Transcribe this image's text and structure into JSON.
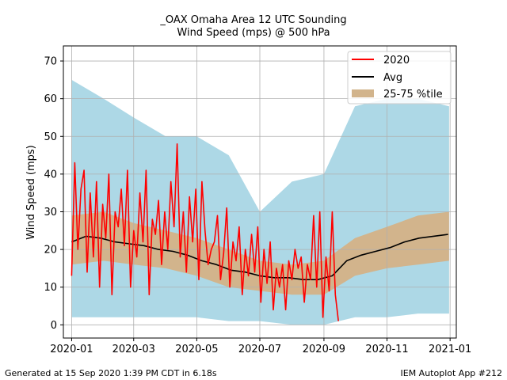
{
  "chart_data": {
    "type": "line",
    "title": "_OAX Omaha Area  12 UTC Sounding",
    "subtitle": "Wind Speed (mps)  @ 500 hPa",
    "ylabel": "Wind Speed (mps)",
    "xlabel": "",
    "ylim": [
      -3.5,
      74
    ],
    "xlim": [
      "2019-12-24",
      "2021-01-07"
    ],
    "yticks": [
      0,
      10,
      20,
      30,
      40,
      50,
      60,
      70
    ],
    "xticks": [
      "2020-01",
      "2020-03",
      "2020-05",
      "2020-07",
      "2020-09",
      "2020-11",
      "2021-01"
    ],
    "grid": true,
    "legend": {
      "placement": "top-right",
      "entries": [
        "2020",
        "Avg",
        "25-75 %tile"
      ]
    },
    "colors": {
      "y2020": "#ff0000",
      "avg": "#000000",
      "iqr": "#d2b48c",
      "range": "#add8e6"
    },
    "series": [
      {
        "name": "2020",
        "x": [
          "2020-01-01",
          "2020-01-04",
          "2020-01-07",
          "2020-01-10",
          "2020-01-13",
          "2020-01-16",
          "2020-01-19",
          "2020-01-22",
          "2020-01-25",
          "2020-01-28",
          "2020-01-31",
          "2020-02-03",
          "2020-02-06",
          "2020-02-09",
          "2020-02-12",
          "2020-02-15",
          "2020-02-18",
          "2020-02-21",
          "2020-02-24",
          "2020-02-27",
          "2020-03-01",
          "2020-03-04",
          "2020-03-07",
          "2020-03-10",
          "2020-03-13",
          "2020-03-16",
          "2020-03-19",
          "2020-03-22",
          "2020-03-25",
          "2020-03-28",
          "2020-03-31",
          "2020-04-03",
          "2020-04-06",
          "2020-04-09",
          "2020-04-12",
          "2020-04-15",
          "2020-04-18",
          "2020-04-21",
          "2020-04-24",
          "2020-04-27",
          "2020-04-30",
          "2020-05-03",
          "2020-05-06",
          "2020-05-09",
          "2020-05-12",
          "2020-05-15",
          "2020-05-18",
          "2020-05-21",
          "2020-05-24",
          "2020-05-27",
          "2020-05-30",
          "2020-06-02",
          "2020-06-05",
          "2020-06-08",
          "2020-06-11",
          "2020-06-14",
          "2020-06-17",
          "2020-06-20",
          "2020-06-23",
          "2020-06-26",
          "2020-06-29",
          "2020-07-02",
          "2020-07-05",
          "2020-07-08",
          "2020-07-11",
          "2020-07-14",
          "2020-07-17",
          "2020-07-20",
          "2020-07-23",
          "2020-07-26",
          "2020-07-29",
          "2020-08-01",
          "2020-08-04",
          "2020-08-07",
          "2020-08-10",
          "2020-08-13",
          "2020-08-16",
          "2020-08-19",
          "2020-08-22",
          "2020-08-25",
          "2020-08-28",
          "2020-08-31",
          "2020-09-03",
          "2020-09-06",
          "2020-09-09",
          "2020-09-12",
          "2020-09-15"
        ],
        "values": [
          13,
          43,
          20,
          36,
          41,
          14,
          35,
          18,
          38,
          10,
          32,
          23,
          40,
          8,
          30,
          26,
          36,
          21,
          41,
          10,
          25,
          18,
          35,
          22,
          41,
          8,
          28,
          24,
          33,
          16,
          30,
          20,
          38,
          26,
          48,
          18,
          30,
          14,
          34,
          22,
          36,
          12,
          38,
          25,
          16,
          20,
          22,
          29,
          12,
          19,
          31,
          10,
          22,
          17,
          26,
          8,
          20,
          13,
          24,
          14,
          26,
          6,
          20,
          11,
          22,
          4,
          15,
          10,
          16,
          4,
          17,
          12,
          20,
          15,
          18,
          6,
          16,
          12,
          29,
          10,
          30,
          2,
          18,
          9,
          30,
          8,
          1
        ]
      },
      {
        "name": "Avg",
        "x": [
          "2020-01-01",
          "2020-01-15",
          "2020-01-29",
          "2020-02-12",
          "2020-02-26",
          "2020-03-11",
          "2020-03-25",
          "2020-04-08",
          "2020-04-22",
          "2020-05-06",
          "2020-05-20",
          "2020-06-03",
          "2020-06-17",
          "2020-07-01",
          "2020-07-15",
          "2020-07-29",
          "2020-08-12",
          "2020-08-26",
          "2020-09-09",
          "2020-09-23",
          "2020-10-07",
          "2020-10-21",
          "2020-11-04",
          "2020-11-18",
          "2020-12-02",
          "2020-12-16",
          "2020-12-30"
        ],
        "values": [
          22,
          23.5,
          23,
          22,
          21.5,
          21,
          20,
          19.5,
          18.5,
          17,
          16,
          14.5,
          14,
          13,
          12.5,
          12.5,
          12,
          12,
          13,
          17,
          18.5,
          19.5,
          20.5,
          22,
          23,
          23.5,
          24
        ]
      },
      {
        "name": "25-75 %tile",
        "x": [
          "2020-01-01",
          "2020-02-01",
          "2020-03-01",
          "2020-04-01",
          "2020-05-01",
          "2020-06-01",
          "2020-07-01",
          "2020-08-01",
          "2020-09-01",
          "2020-10-01",
          "2020-11-01",
          "2020-12-01",
          "2020-12-31"
        ],
        "lower": [
          16,
          17,
          16,
          15,
          13,
          10,
          9,
          8,
          8,
          13,
          15,
          16,
          17
        ],
        "upper": [
          29,
          30,
          27,
          25,
          23,
          20,
          17,
          16,
          17,
          23,
          26,
          29,
          30
        ]
      },
      {
        "name": "range",
        "x": [
          "2020-01-01",
          "2020-02-01",
          "2020-03-01",
          "2020-04-01",
          "2020-05-01",
          "2020-06-01",
          "2020-07-01",
          "2020-08-01",
          "2020-09-01",
          "2020-10-01",
          "2020-11-01",
          "2020-12-01",
          "2020-12-31"
        ],
        "lower": [
          2,
          2,
          2,
          2,
          2,
          1,
          1,
          0,
          0,
          2,
          2,
          3,
          3
        ],
        "upper": [
          65,
          60,
          55,
          50,
          50,
          45,
          30,
          38,
          40,
          58,
          60,
          60,
          58
        ]
      }
    ]
  },
  "footer": {
    "left": "Generated at 15 Sep 2020 1:39 PM CDT in 6.18s",
    "right": "IEM Autoplot App #212"
  }
}
